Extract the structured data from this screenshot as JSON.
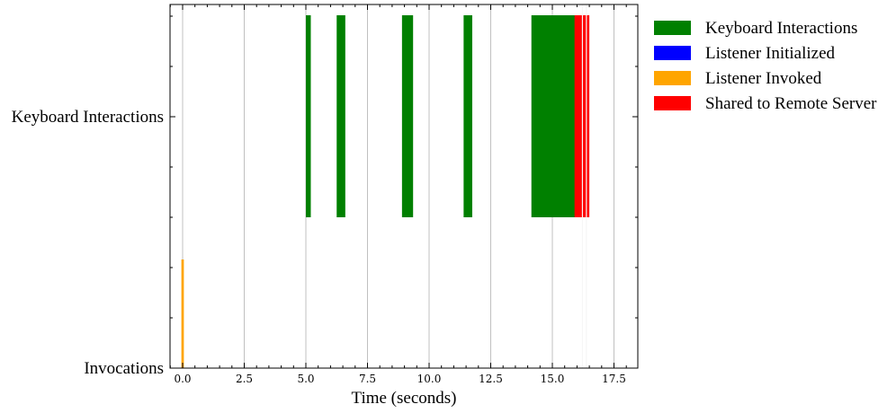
{
  "chart_data": {
    "type": "timeline",
    "xlabel": "Time (seconds)",
    "xlim": [
      -0.6,
      18.5
    ],
    "x_ticks": [
      0.0,
      2.5,
      5.0,
      7.5,
      10.0,
      12.5,
      15.0,
      17.5
    ],
    "x_tick_labels": [
      "0.0",
      "2.5",
      "5.0",
      "7.5",
      "10.0",
      "12.5",
      "15.0",
      "17.5"
    ],
    "rows": [
      "Invocations",
      "Keyboard Interactions"
    ],
    "grid": "vertical",
    "legend_position": "outside-right",
    "legend": [
      {
        "label": "Keyboard Interactions",
        "color": "#008000"
      },
      {
        "label": "Listener Initialized",
        "color": "#0000ff"
      },
      {
        "label": "Listener Invoked",
        "color": "#ffa500"
      },
      {
        "label": "Shared to Remote Server",
        "color": "#ff0000"
      }
    ],
    "series": [
      {
        "name": "Keyboard Interactions",
        "color": "#008000",
        "row": "Keyboard Interactions",
        "intervals": [
          [
            5.0,
            5.2
          ],
          [
            6.25,
            6.6
          ],
          [
            8.9,
            9.35
          ],
          [
            11.4,
            11.75
          ],
          [
            14.15,
            16.45
          ]
        ]
      },
      {
        "name": "Listener Initialized",
        "color": "#0000ff",
        "row": "Invocations",
        "intervals": []
      },
      {
        "name": "Listener Invoked",
        "color": "#ffa500",
        "row": "Invocations",
        "intervals": [
          [
            -0.05,
            0.05
          ]
        ]
      },
      {
        "name": "Shared to Remote Server",
        "color": "#ff0000",
        "row": "Keyboard Interactions",
        "intervals": [
          [
            15.9,
            16.5
          ]
        ]
      }
    ]
  }
}
